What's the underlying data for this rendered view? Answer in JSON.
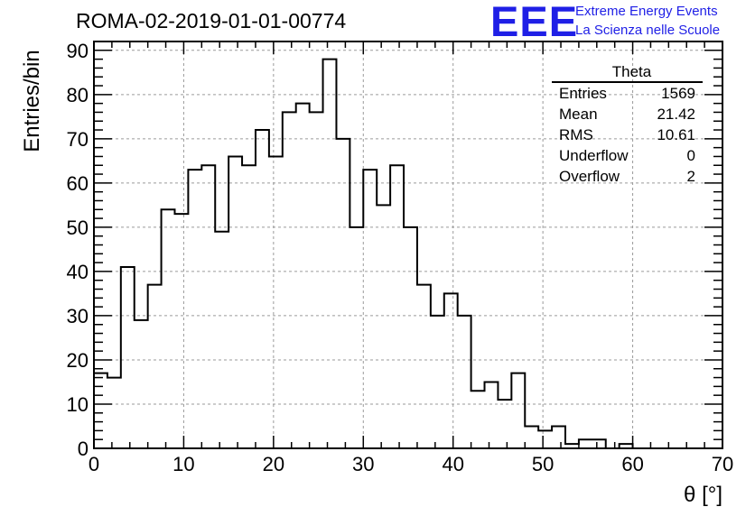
{
  "title": "ROMA-02-2019-01-01-00774",
  "logo": {
    "mark": "EEE",
    "line1": "Extreme Energy Events",
    "line2": "La Scienza nelle Scuole",
    "color": "#1f1fe6"
  },
  "stats_box": {
    "title": "Theta",
    "rows": [
      {
        "label": "Entries",
        "value": "1569"
      },
      {
        "label": "Mean",
        "value": "21.42"
      },
      {
        "label": "RMS",
        "value": "10.61"
      },
      {
        "label": "Underflow",
        "value": "0"
      },
      {
        "label": "Overflow",
        "value": "2"
      }
    ]
  },
  "chart_data": {
    "type": "bar",
    "style": "step-histogram",
    "title": "ROMA-02-2019-01-01-00774",
    "xlabel": "θ [°]",
    "ylabel": "Entries/bin",
    "xlim": [
      0,
      70
    ],
    "ylim": [
      0,
      92
    ],
    "bin_width": 1.5,
    "bin_start": 0,
    "xticks": [
      0,
      10,
      20,
      30,
      40,
      50,
      60,
      70
    ],
    "yticks": [
      0,
      10,
      20,
      30,
      40,
      50,
      60,
      70,
      80,
      90
    ],
    "grid": true,
    "values": [
      17,
      16,
      41,
      29,
      37,
      54,
      53,
      63,
      64,
      49,
      66,
      64,
      72,
      66,
      76,
      78,
      76,
      88,
      70,
      50,
      63,
      55,
      64,
      50,
      37,
      30,
      35,
      30,
      13,
      15,
      11,
      17,
      5,
      4,
      5,
      1,
      2,
      2,
      0,
      1,
      0,
      0,
      0,
      0,
      0,
      0
    ]
  }
}
